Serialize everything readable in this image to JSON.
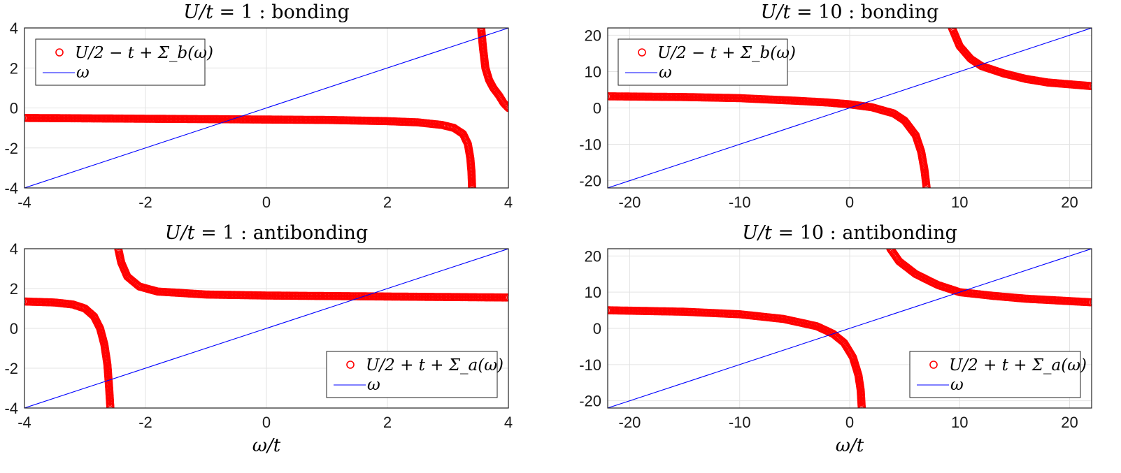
{
  "chart_data": [
    {
      "type": "scatter",
      "panel": "top-left",
      "title_parts": [
        "U/t",
        "= 1 :",
        "bonding"
      ],
      "xlabel": "",
      "ylabel": "",
      "xlim": [
        -4,
        4
      ],
      "ylim": [
        -4,
        4
      ],
      "xticks": [
        "-4",
        "-2",
        "0",
        "2",
        "4"
      ],
      "yticks": [
        "-4",
        "-2",
        "0",
        "2",
        "4"
      ],
      "grid": true,
      "legend": {
        "placement": "top-left",
        "entries": [
          "U/2 − t + Σ_b(ω)",
          "ω"
        ]
      },
      "series": [
        {
          "marker": "circle",
          "color": "#ff0000",
          "points": [
            [
              -4,
              -0.5
            ],
            [
              -3,
              -0.52
            ],
            [
              -2,
              -0.54
            ],
            [
              -1,
              -0.56
            ],
            [
              0,
              -0.58
            ],
            [
              1,
              -0.6
            ],
            [
              2,
              -0.66
            ],
            [
              2.5,
              -0.72
            ],
            [
              2.9,
              -0.85
            ],
            [
              3.1,
              -1.0
            ],
            [
              3.25,
              -1.3
            ],
            [
              3.33,
              -1.8
            ],
            [
              3.37,
              -2.5
            ],
            [
              3.39,
              -3.2
            ],
            [
              3.4,
              -4.0
            ]
          ]
        },
        {
          "marker": "circle",
          "color": "#ff0000",
          "points": [
            [
              3.55,
              4.0
            ],
            [
              3.58,
              3.0
            ],
            [
              3.62,
              2.0
            ],
            [
              3.68,
              1.4
            ],
            [
              3.75,
              1.0
            ],
            [
              3.85,
              0.6
            ],
            [
              3.92,
              0.25
            ],
            [
              4.0,
              0.0
            ]
          ]
        },
        {
          "marker": "line",
          "color": "#0000ff",
          "points": [
            [
              -4,
              -4
            ],
            [
              4,
              4
            ]
          ]
        }
      ]
    },
    {
      "type": "scatter",
      "panel": "top-right",
      "title_parts": [
        "U/t",
        "= 10 :",
        "bonding"
      ],
      "xlabel": "",
      "ylabel": "",
      "xlim": [
        -22,
        22
      ],
      "ylim": [
        -22,
        22
      ],
      "xticks": [
        "-20",
        "-10",
        "0",
        "10",
        "20"
      ],
      "yticks": [
        "-20",
        "-10",
        "0",
        "10",
        "20"
      ],
      "grid": true,
      "legend": {
        "placement": "top-left",
        "entries": [
          "U/2 − t + Σ_b(ω)",
          "ω"
        ]
      },
      "series": [
        {
          "marker": "circle",
          "color": "#ff0000",
          "points": [
            [
              -22,
              3.2
            ],
            [
              -15,
              3.0
            ],
            [
              -10,
              2.7
            ],
            [
              -5,
              2.0
            ],
            [
              -2,
              1.5
            ],
            [
              0,
              1.0
            ],
            [
              2,
              0.2
            ],
            [
              4,
              -1.5
            ],
            [
              5,
              -3.5
            ],
            [
              6,
              -7.5
            ],
            [
              6.5,
              -12
            ],
            [
              6.8,
              -17
            ],
            [
              7.0,
              -22
            ]
          ]
        },
        {
          "marker": "circle",
          "color": "#ff0000",
          "points": [
            [
              9.3,
              22
            ],
            [
              10,
              17
            ],
            [
              11,
              13.5
            ],
            [
              12,
              11.5
            ],
            [
              14,
              9.5
            ],
            [
              16,
              8
            ],
            [
              18,
              7
            ],
            [
              20,
              6.5
            ],
            [
              22,
              6.0
            ]
          ]
        },
        {
          "marker": "line",
          "color": "#0000ff",
          "points": [
            [
              -22,
              -22
            ],
            [
              22,
              22
            ]
          ]
        }
      ]
    },
    {
      "type": "scatter",
      "panel": "bottom-left",
      "title_parts": [
        "U/t",
        "= 1 :",
        "antibonding"
      ],
      "xlabel": "ω/t",
      "ylabel": "",
      "xlim": [
        -4,
        4
      ],
      "ylim": [
        -4,
        4
      ],
      "xticks": [
        "-4",
        "-2",
        "0",
        "2",
        "4"
      ],
      "yticks": [
        "-4",
        "-2",
        "0",
        "2",
        "4"
      ],
      "grid": true,
      "legend": {
        "placement": "bottom-right",
        "entries": [
          "U/2 + t + Σ_a(ω)",
          "ω"
        ]
      },
      "series": [
        {
          "marker": "circle",
          "color": "#ff0000",
          "points": [
            [
              -4,
              1.35
            ],
            [
              -3.5,
              1.3
            ],
            [
              -3.2,
              1.2
            ],
            [
              -3.0,
              1.0
            ],
            [
              -2.85,
              0.6
            ],
            [
              -2.75,
              0.0
            ],
            [
              -2.68,
              -0.8
            ],
            [
              -2.63,
              -1.8
            ],
            [
              -2.6,
              -3.0
            ],
            [
              -2.58,
              -4.0
            ]
          ]
        },
        {
          "marker": "circle",
          "color": "#ff0000",
          "points": [
            [
              -2.45,
              4.0
            ],
            [
              -2.4,
              3.3
            ],
            [
              -2.3,
              2.6
            ],
            [
              -2.1,
              2.1
            ],
            [
              -1.8,
              1.85
            ],
            [
              -1.0,
              1.7
            ],
            [
              0,
              1.65
            ],
            [
              2,
              1.6
            ],
            [
              4,
              1.55
            ]
          ]
        },
        {
          "marker": "line",
          "color": "#0000ff",
          "points": [
            [
              -4,
              -4
            ],
            [
              4,
              4
            ]
          ]
        }
      ]
    },
    {
      "type": "scatter",
      "panel": "bottom-right",
      "title_parts": [
        "U/t",
        "= 10 :",
        "antibonding"
      ],
      "xlabel": "ω/t",
      "ylabel": "",
      "xlim": [
        -22,
        22
      ],
      "ylim": [
        -22,
        22
      ],
      "xticks": [
        "-20",
        "-10",
        "0",
        "10",
        "20"
      ],
      "yticks": [
        "-20",
        "-10",
        "0",
        "10",
        "20"
      ],
      "grid": true,
      "legend": {
        "placement": "bottom-right",
        "entries": [
          "U/2 + t + Σ_a(ω)",
          "ω"
        ]
      },
      "series": [
        {
          "marker": "circle",
          "color": "#ff0000",
          "points": [
            [
              -22,
              5.0
            ],
            [
              -15,
              4.6
            ],
            [
              -10,
              3.9
            ],
            [
              -6,
              2.6
            ],
            [
              -3,
              0.6
            ],
            [
              -1.5,
              -1.5
            ],
            [
              -0.5,
              -4
            ],
            [
              0.3,
              -8
            ],
            [
              0.8,
              -13
            ],
            [
              1.0,
              -17
            ],
            [
              1.1,
              -22
            ]
          ]
        },
        {
          "marker": "circle",
          "color": "#ff0000",
          "points": [
            [
              3.7,
              22
            ],
            [
              4.5,
              18.5
            ],
            [
              6,
              15
            ],
            [
              8,
              12
            ],
            [
              10,
              10
            ],
            [
              13,
              9
            ],
            [
              16,
              8.2
            ],
            [
              19,
              7.7
            ],
            [
              22,
              7.2
            ]
          ]
        },
        {
          "marker": "line",
          "color": "#0000ff",
          "points": [
            [
              -22,
              -22
            ],
            [
              22,
              22
            ]
          ]
        }
      ]
    }
  ]
}
